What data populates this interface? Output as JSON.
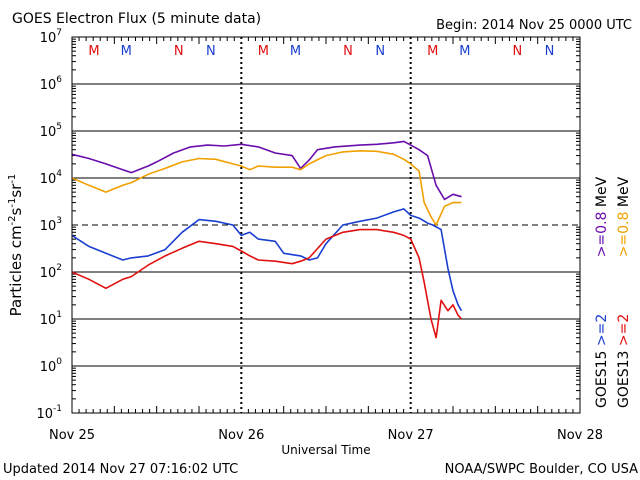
{
  "header": {
    "title": "GOES Electron Flux (5 minute data)",
    "begin": "Begin: 2014 Nov 25 0000 UTC"
  },
  "footer": {
    "updated": "Updated 2014 Nov 27 07:16:02 UTC",
    "credit": "NOAA/SWPC Boulder, CO USA"
  },
  "colors": {
    "purple": "#6a0dad",
    "orange": "#f0a000",
    "blue": "#1a3fd0",
    "red": "#e01010"
  },
  "chart_data": {
    "type": "line",
    "title": "GOES Electron Flux (5 minute data)",
    "xlabel": "Universal Time",
    "ylabel_main": "Particles cm",
    "ylabel_exp1": "-2",
    "ylabel_mid1": "s",
    "ylabel_exp2": "-1",
    "ylabel_mid2": "sr",
    "ylabel_exp3": "-1",
    "yscale": "log",
    "ylim": [
      0.1,
      10000000
    ],
    "xlim_days": [
      0,
      3
    ],
    "x_ticks": [
      {
        "label": "Nov 25",
        "day": 0
      },
      {
        "label": "Nov 26",
        "day": 1
      },
      {
        "label": "Nov 27",
        "day": 2
      },
      {
        "label": "Nov 28",
        "day": 3
      }
    ],
    "y_ticks": [
      {
        "base": "10",
        "exp": "7",
        "value": 10000000
      },
      {
        "base": "10",
        "exp": "6",
        "value": 1000000
      },
      {
        "base": "10",
        "exp": "5",
        "value": 100000
      },
      {
        "base": "10",
        "exp": "4",
        "value": 10000
      },
      {
        "base": "10",
        "exp": "3",
        "value": 1000
      },
      {
        "base": "10",
        "exp": "2",
        "value": 100
      },
      {
        "base": "10",
        "exp": "1",
        "value": 10
      },
      {
        "base": "10",
        "exp": "0",
        "value": 1
      },
      {
        "base": "10",
        "exp": "-1",
        "value": 0.1
      }
    ],
    "threshold": 1000,
    "mn_markers": [
      {
        "label": "M",
        "day": 0.13,
        "color": "#e01010"
      },
      {
        "label": "M",
        "day": 0.32,
        "color": "#1a3fd0"
      },
      {
        "label": "N",
        "day": 0.63,
        "color": "#e01010"
      },
      {
        "label": "N",
        "day": 0.82,
        "color": "#1a3fd0"
      },
      {
        "label": "M",
        "day": 1.13,
        "color": "#e01010"
      },
      {
        "label": "M",
        "day": 1.32,
        "color": "#1a3fd0"
      },
      {
        "label": "N",
        "day": 1.63,
        "color": "#e01010"
      },
      {
        "label": "N",
        "day": 1.82,
        "color": "#1a3fd0"
      },
      {
        "label": "M",
        "day": 2.13,
        "color": "#e01010"
      },
      {
        "label": "M",
        "day": 2.32,
        "color": "#1a3fd0"
      },
      {
        "label": "N",
        "day": 2.63,
        "color": "#e01010"
      },
      {
        "label": "N",
        "day": 2.82,
        "color": "#1a3fd0"
      }
    ],
    "legend": [
      {
        "satellite": "GOES15",
        "label": ">=2",
        "unit": "",
        "color": "#1a3fd0"
      },
      {
        "satellite": "",
        "label": ">=0.8",
        "unit": "MeV",
        "color": "#6a0dad"
      },
      {
        "satellite": "GOES13",
        "label": ">=2",
        "unit": "",
        "color": "#e01010"
      },
      {
        "satellite": "",
        "label": ">=0.8",
        "unit": "MeV",
        "color": "#f0a000"
      }
    ],
    "series": [
      {
        "name": "GOES15 >=0.8 MeV",
        "color": "#6a0dad",
        "x": [
          0,
          0.1,
          0.2,
          0.3,
          0.35,
          0.45,
          0.5,
          0.6,
          0.7,
          0.8,
          0.9,
          1.0,
          1.1,
          1.2,
          1.3,
          1.35,
          1.4,
          1.45,
          1.55,
          1.7,
          1.8,
          1.9,
          1.96,
          2.0,
          2.05,
          2.1,
          2.15,
          2.2,
          2.25,
          2.3
        ],
        "y": [
          32000,
          26000,
          20000,
          15000,
          13000,
          18000,
          22000,
          34000,
          46000,
          50000,
          48000,
          52000,
          46000,
          34000,
          30000,
          16000,
          24000,
          40000,
          46000,
          50000,
          52000,
          56000,
          60000,
          50000,
          40000,
          30000,
          7000,
          3500,
          4500,
          4000
        ]
      },
      {
        "name": "GOES15 >=2 MeV",
        "color": "#1a3fd0",
        "x": [
          0,
          0.1,
          0.2,
          0.3,
          0.35,
          0.45,
          0.55,
          0.65,
          0.75,
          0.85,
          0.95,
          1.0,
          1.05,
          1.1,
          1.2,
          1.25,
          1.35,
          1.4,
          1.45,
          1.5,
          1.6,
          1.7,
          1.8,
          1.9,
          1.96,
          2.0,
          2.05,
          2.1,
          2.13,
          2.18,
          2.22,
          2.25,
          2.28,
          2.3
        ],
        "y": [
          600,
          350,
          250,
          180,
          200,
          220,
          300,
          700,
          1300,
          1200,
          1000,
          600,
          700,
          500,
          450,
          250,
          220,
          180,
          200,
          400,
          1000,
          1200,
          1400,
          1900,
          2200,
          1600,
          1400,
          1100,
          1000,
          800,
          120,
          40,
          20,
          15
        ]
      },
      {
        "name": "GOES13 >=0.8 MeV",
        "color": "#f0a000",
        "x": [
          0,
          0.1,
          0.2,
          0.3,
          0.35,
          0.45,
          0.55,
          0.65,
          0.75,
          0.85,
          0.95,
          1.0,
          1.05,
          1.1,
          1.2,
          1.3,
          1.35,
          1.4,
          1.5,
          1.6,
          1.7,
          1.8,
          1.9,
          1.96,
          2.0,
          2.05,
          2.08,
          2.12,
          2.15,
          2.2,
          2.25,
          2.3
        ],
        "y": [
          10000,
          7000,
          5000,
          7000,
          8000,
          12000,
          16000,
          22000,
          26000,
          25000,
          20000,
          18000,
          15000,
          18000,
          17000,
          17000,
          15000,
          20000,
          30000,
          36000,
          38000,
          37000,
          32000,
          25000,
          20000,
          14000,
          3000,
          1500,
          1000,
          2500,
          3000,
          3000
        ]
      },
      {
        "name": "GOES13 >=2 MeV",
        "color": "#e01010",
        "x": [
          0,
          0.1,
          0.2,
          0.3,
          0.35,
          0.45,
          0.55,
          0.65,
          0.75,
          0.85,
          0.95,
          1.0,
          1.05,
          1.1,
          1.2,
          1.3,
          1.35,
          1.4,
          1.5,
          1.6,
          1.7,
          1.8,
          1.9,
          1.96,
          2.0,
          2.05,
          2.08,
          2.12,
          2.15,
          2.18,
          2.22,
          2.25,
          2.28,
          2.3
        ],
        "y": [
          100,
          70,
          45,
          70,
          80,
          140,
          220,
          320,
          450,
          400,
          350,
          280,
          220,
          180,
          170,
          150,
          170,
          200,
          500,
          700,
          800,
          800,
          700,
          600,
          500,
          200,
          60,
          10,
          4,
          25,
          15,
          20,
          12,
          10
        ]
      }
    ]
  }
}
